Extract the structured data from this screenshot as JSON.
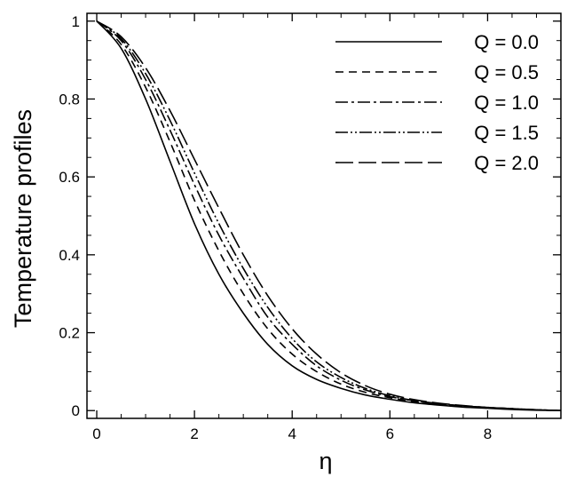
{
  "chart_data": {
    "type": "line",
    "title": "",
    "xlabel": "η",
    "ylabel": "Temperature profiles",
    "xlim": [
      -0.2,
      9.5
    ],
    "ylim": [
      -0.02,
      1.02
    ],
    "x_ticks": [
      "0",
      "2",
      "4",
      "6",
      "8"
    ],
    "y_ticks": [
      "0",
      "0.2",
      "0.4",
      "0.6",
      "0.8",
      "1"
    ],
    "grid": false,
    "legend_position": "top-right",
    "x": [
      0,
      0.5,
      1,
      1.5,
      2,
      2.5,
      3,
      3.5,
      4,
      4.5,
      5,
      5.5,
      6,
      6.5,
      7,
      7.5,
      8,
      8.5,
      9,
      9.5
    ],
    "series": [
      {
        "name": "Q = 0.0",
        "dash": "solid",
        "values": [
          1.0,
          0.93,
          0.8,
          0.64,
          0.48,
          0.35,
          0.25,
          0.17,
          0.115,
          0.08,
          0.057,
          0.04,
          0.029,
          0.02,
          0.014,
          0.009,
          0.006,
          0.003,
          0.001,
          0.0
        ]
      },
      {
        "name": "Q = 0.5",
        "dash": "dashed",
        "values": [
          1.0,
          0.94,
          0.83,
          0.69,
          0.54,
          0.41,
          0.3,
          0.21,
          0.145,
          0.1,
          0.068,
          0.047,
          0.033,
          0.023,
          0.016,
          0.011,
          0.007,
          0.004,
          0.002,
          0.0
        ]
      },
      {
        "name": "Q = 1.0",
        "dash": "dash-dot",
        "values": [
          1.0,
          0.95,
          0.85,
          0.72,
          0.58,
          0.45,
          0.34,
          0.24,
          0.17,
          0.115,
          0.078,
          0.053,
          0.036,
          0.025,
          0.017,
          0.012,
          0.008,
          0.005,
          0.002,
          0.0
        ]
      },
      {
        "name": "Q = 1.5",
        "dash": "dash-dot-dot",
        "values": [
          1.0,
          0.955,
          0.865,
          0.745,
          0.61,
          0.48,
          0.365,
          0.265,
          0.185,
          0.125,
          0.085,
          0.057,
          0.038,
          0.026,
          0.018,
          0.012,
          0.008,
          0.005,
          0.002,
          0.0
        ]
      },
      {
        "name": "Q = 2.0",
        "dash": "long-dash",
        "values": [
          1.0,
          0.96,
          0.88,
          0.77,
          0.645,
          0.52,
          0.4,
          0.295,
          0.21,
          0.145,
          0.097,
          0.064,
          0.042,
          0.028,
          0.019,
          0.013,
          0.008,
          0.005,
          0.002,
          0.0
        ]
      }
    ]
  }
}
